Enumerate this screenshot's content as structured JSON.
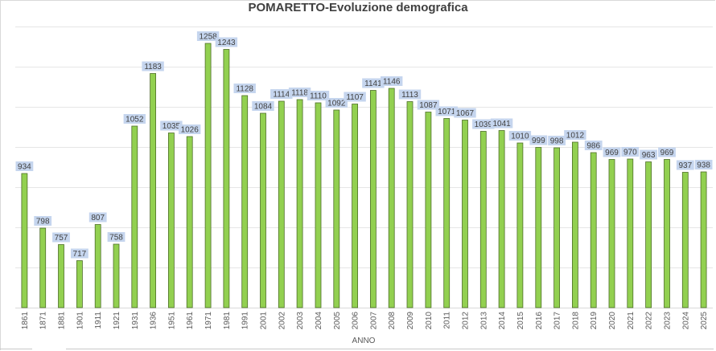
{
  "chart_data": {
    "type": "bar",
    "title": "POMARETTO-Evoluzione demografica",
    "xlabel": "ANNO",
    "ylabel": "",
    "ylim": [
      600,
      1300
    ],
    "grid": true,
    "legend": "none",
    "bar_color": "#92d050",
    "bar_edge_color": "#4e6e28",
    "label_bg_color": "#c5d5ee",
    "categories": [
      "1861",
      "1871",
      "1881",
      "1901",
      "1911",
      "1921",
      "1931",
      "1936",
      "1951",
      "1961",
      "1971",
      "1981",
      "1991",
      "2001",
      "2002",
      "2003",
      "2004",
      "2005",
      "2006",
      "2007",
      "2008",
      "2009",
      "2010",
      "2011",
      "2012",
      "2013",
      "2014",
      "2015",
      "2016",
      "2017",
      "2018",
      "2019",
      "2020",
      "2021",
      "2022",
      "2023",
      "2024",
      "2025"
    ],
    "values": [
      934,
      798,
      757,
      717,
      807,
      758,
      1052,
      1183,
      1035,
      1026,
      1258,
      1243,
      1128,
      1084,
      1114,
      1118,
      1110,
      1092,
      1107,
      1141,
      1146,
      1113,
      1087,
      1071,
      1067,
      1039,
      1041,
      1010,
      999,
      998,
      1012,
      986,
      969,
      970,
      963,
      969,
      937,
      938
    ]
  }
}
